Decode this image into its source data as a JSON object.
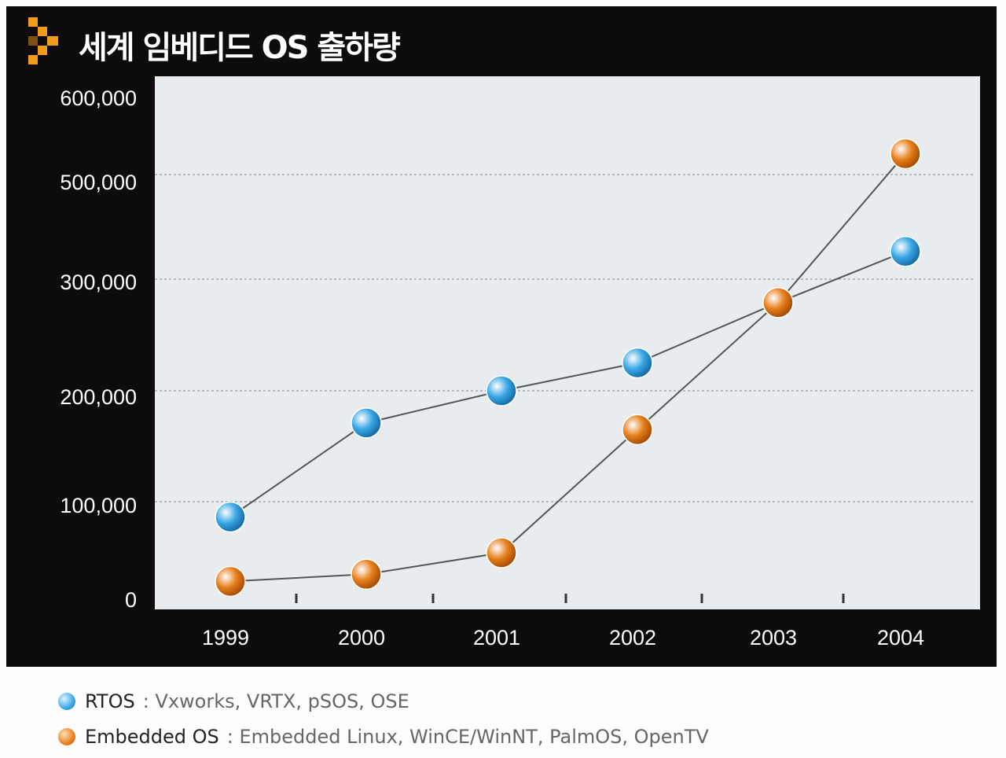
{
  "title": "세계 임베디드 OS 출하량",
  "chart_data": {
    "type": "line",
    "title": "세계 임베디드 OS 출하량",
    "categories": [
      "1999",
      "2000",
      "2001",
      "2002",
      "2003",
      "2004"
    ],
    "yticks": [
      "600,000",
      "500,000",
      "300,000",
      "200,000",
      "100,000",
      "0"
    ],
    "grid": true,
    "series": [
      {
        "name": "RTOS",
        "color": "#3aa8e6",
        "values": [
          85000,
          171000,
          200000,
          225000,
          279000,
          353000
        ]
      },
      {
        "name": "Embedded OS",
        "color": "#e8801c",
        "values": [
          22000,
          29000,
          50000,
          165000,
          279000,
          526000
        ]
      }
    ]
  },
  "legend": [
    {
      "name": "RTOS",
      "desc": ": Vxworks, VRTX, pSOS, OSE",
      "color": "#3aa8e6"
    },
    {
      "name": "Embedded OS",
      "desc": ": Embedded Linux, WinCE/WinNT, PalmOS, OpenTV",
      "color": "#e8801c"
    }
  ]
}
